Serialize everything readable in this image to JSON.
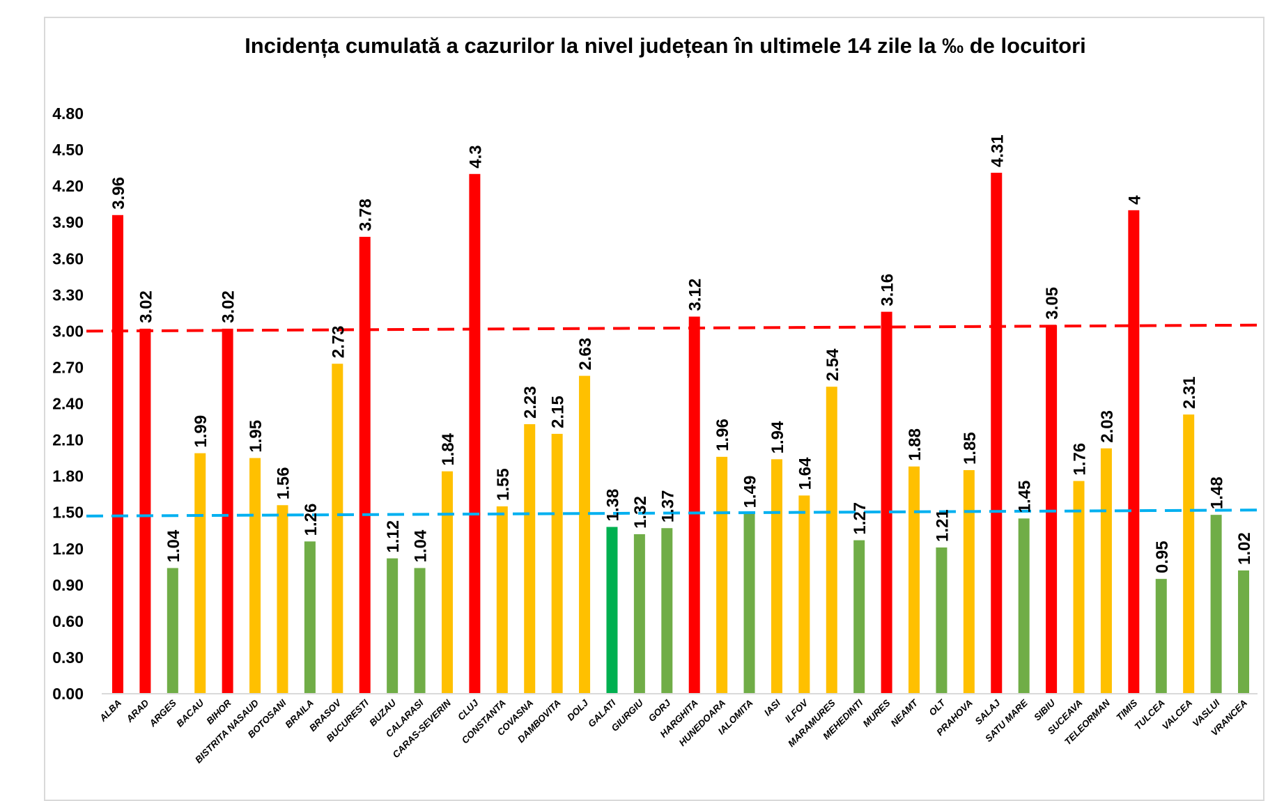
{
  "chart_data": {
    "type": "bar",
    "title": "Incidența cumulată a cazurilor la nivel județean în ultimele 14 zile la ‰ de locuitori",
    "xlabel": "",
    "ylabel": "",
    "ylim": [
      0,
      4.8
    ],
    "yticks": [
      "0.00",
      "0.30",
      "0.60",
      "0.90",
      "1.20",
      "1.50",
      "1.80",
      "2.10",
      "2.40",
      "2.70",
      "3.00",
      "3.30",
      "3.60",
      "3.90",
      "4.20",
      "4.50",
      "4.80"
    ],
    "grid": false,
    "legend": "none",
    "categories": [
      "ALBA",
      "ARAD",
      "ARGES",
      "BACAU",
      "BIHOR",
      "BISTRITA NASAUD",
      "BOTOSANI",
      "BRAILA",
      "BRASOV",
      "BUCURESTI",
      "BUZAU",
      "CALARASI",
      "CARAS-SEVERIN",
      "CLUJ",
      "CONSTANTA",
      "COVASNA",
      "DAMBOVITA",
      "DOLJ",
      "GALATI",
      "GIURGIU",
      "GORJ",
      "HARGHITA",
      "HUNEDOARA",
      "IALOMITA",
      "IASI",
      "ILFOV",
      "MARAMURES",
      "MEHEDINTI",
      "MURES",
      "NEAMT",
      "OLT",
      "PRAHOVA",
      "SALAJ",
      "SATU MARE",
      "SIBIU",
      "SUCEAVA",
      "TELEORMAN",
      "TIMIS",
      "TULCEA",
      "VALCEA",
      "VASLUI",
      "VRANCEA"
    ],
    "values": [
      3.96,
      3.02,
      1.04,
      1.99,
      3.02,
      1.95,
      1.56,
      1.26,
      2.73,
      3.78,
      1.12,
      1.04,
      1.84,
      4.3,
      1.55,
      2.23,
      2.15,
      2.63,
      1.38,
      1.32,
      1.37,
      3.12,
      1.96,
      1.49,
      1.94,
      1.64,
      2.54,
      1.27,
      3.16,
      1.88,
      1.21,
      1.85,
      4.31,
      1.45,
      3.05,
      1.76,
      2.03,
      4,
      0.95,
      2.31,
      1.48,
      1.02
    ],
    "data_labels": [
      "3.96",
      "3.02",
      "1.04",
      "1.99",
      "3.02",
      "1.95",
      "1.56",
      "1.26",
      "2.73",
      "3.78",
      "1.12",
      "1.04",
      "1.84",
      "4.3",
      "1.55",
      "2.23",
      "2.15",
      "2.63",
      "1.38",
      "1.32",
      "1.37",
      "3.12",
      "1.96",
      "1.49",
      "1.94",
      "1.64",
      "2.54",
      "1.27",
      "3.16",
      "1.88",
      "1.21",
      "1.85",
      "4.31",
      "1.45",
      "3.05",
      "1.76",
      "2.03",
      "4",
      "0.95",
      "2.31",
      "1.48",
      "1.02"
    ],
    "bar_colors": [
      "#FF0000",
      "#FF0000",
      "#70AD47",
      "#FFC000",
      "#FF0000",
      "#FFC000",
      "#FFC000",
      "#70AD47",
      "#FFC000",
      "#FF0000",
      "#70AD47",
      "#70AD47",
      "#FFC000",
      "#FF0000",
      "#FFC000",
      "#FFC000",
      "#FFC000",
      "#FFC000",
      "#00B050",
      "#70AD47",
      "#70AD47",
      "#FF0000",
      "#FFC000",
      "#70AD47",
      "#FFC000",
      "#FFC000",
      "#FFC000",
      "#70AD47",
      "#FF0000",
      "#FFC000",
      "#70AD47",
      "#FFC000",
      "#FF0000",
      "#70AD47",
      "#FF0000",
      "#FFC000",
      "#FFC000",
      "#FF0000",
      "#70AD47",
      "#FFC000",
      "#70AD47",
      "#70AD47"
    ],
    "reference_lines": [
      {
        "style": "dashed",
        "color": "#FF0000",
        "y_start": 3.0,
        "y_end": 3.05
      },
      {
        "style": "dashed",
        "color": "#00B0F0",
        "y_start": 1.47,
        "y_end": 1.52
      }
    ]
  }
}
